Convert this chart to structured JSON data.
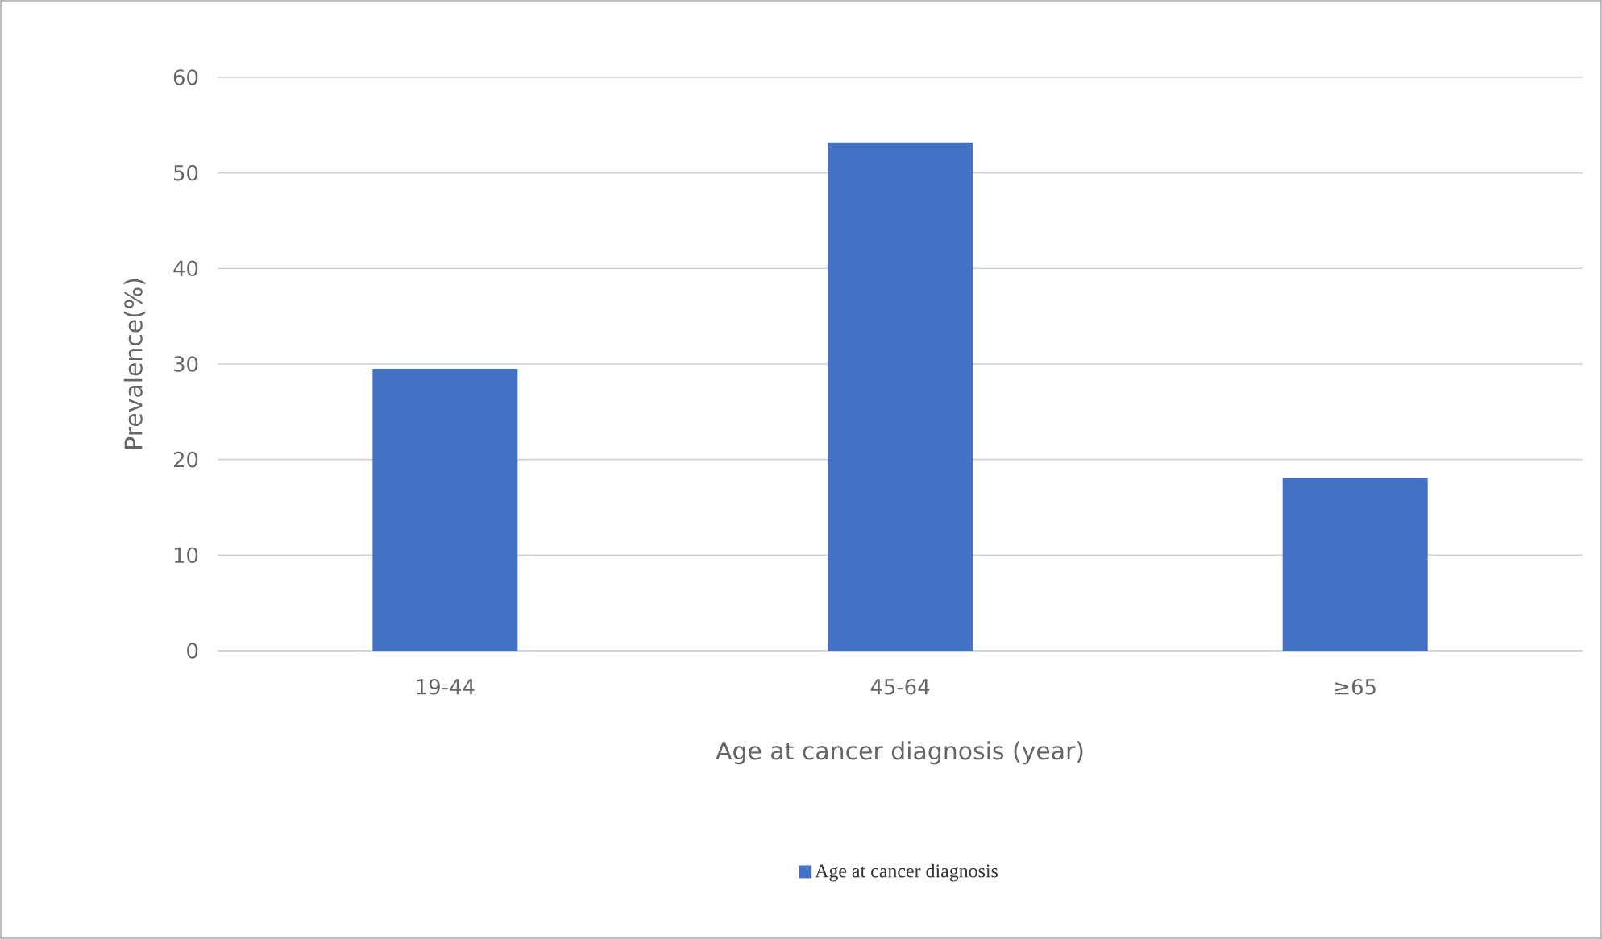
{
  "chart_data": {
    "type": "bar",
    "xlabel": "Age at cancer diagnosis (year)",
    "ylabel": "Prevalence(%)",
    "categories": [
      "19-44",
      "45-64",
      "≥65"
    ],
    "series": [
      {
        "name": "Age at cancer diagnosis",
        "color": "#4472c4",
        "values": [
          29.5,
          53.2,
          18.1
        ]
      }
    ],
    "ylim": [
      0,
      60
    ],
    "yticks": [
      0,
      10,
      20,
      30,
      40,
      50,
      60
    ],
    "grid": "y",
    "legend": "bottom"
  }
}
